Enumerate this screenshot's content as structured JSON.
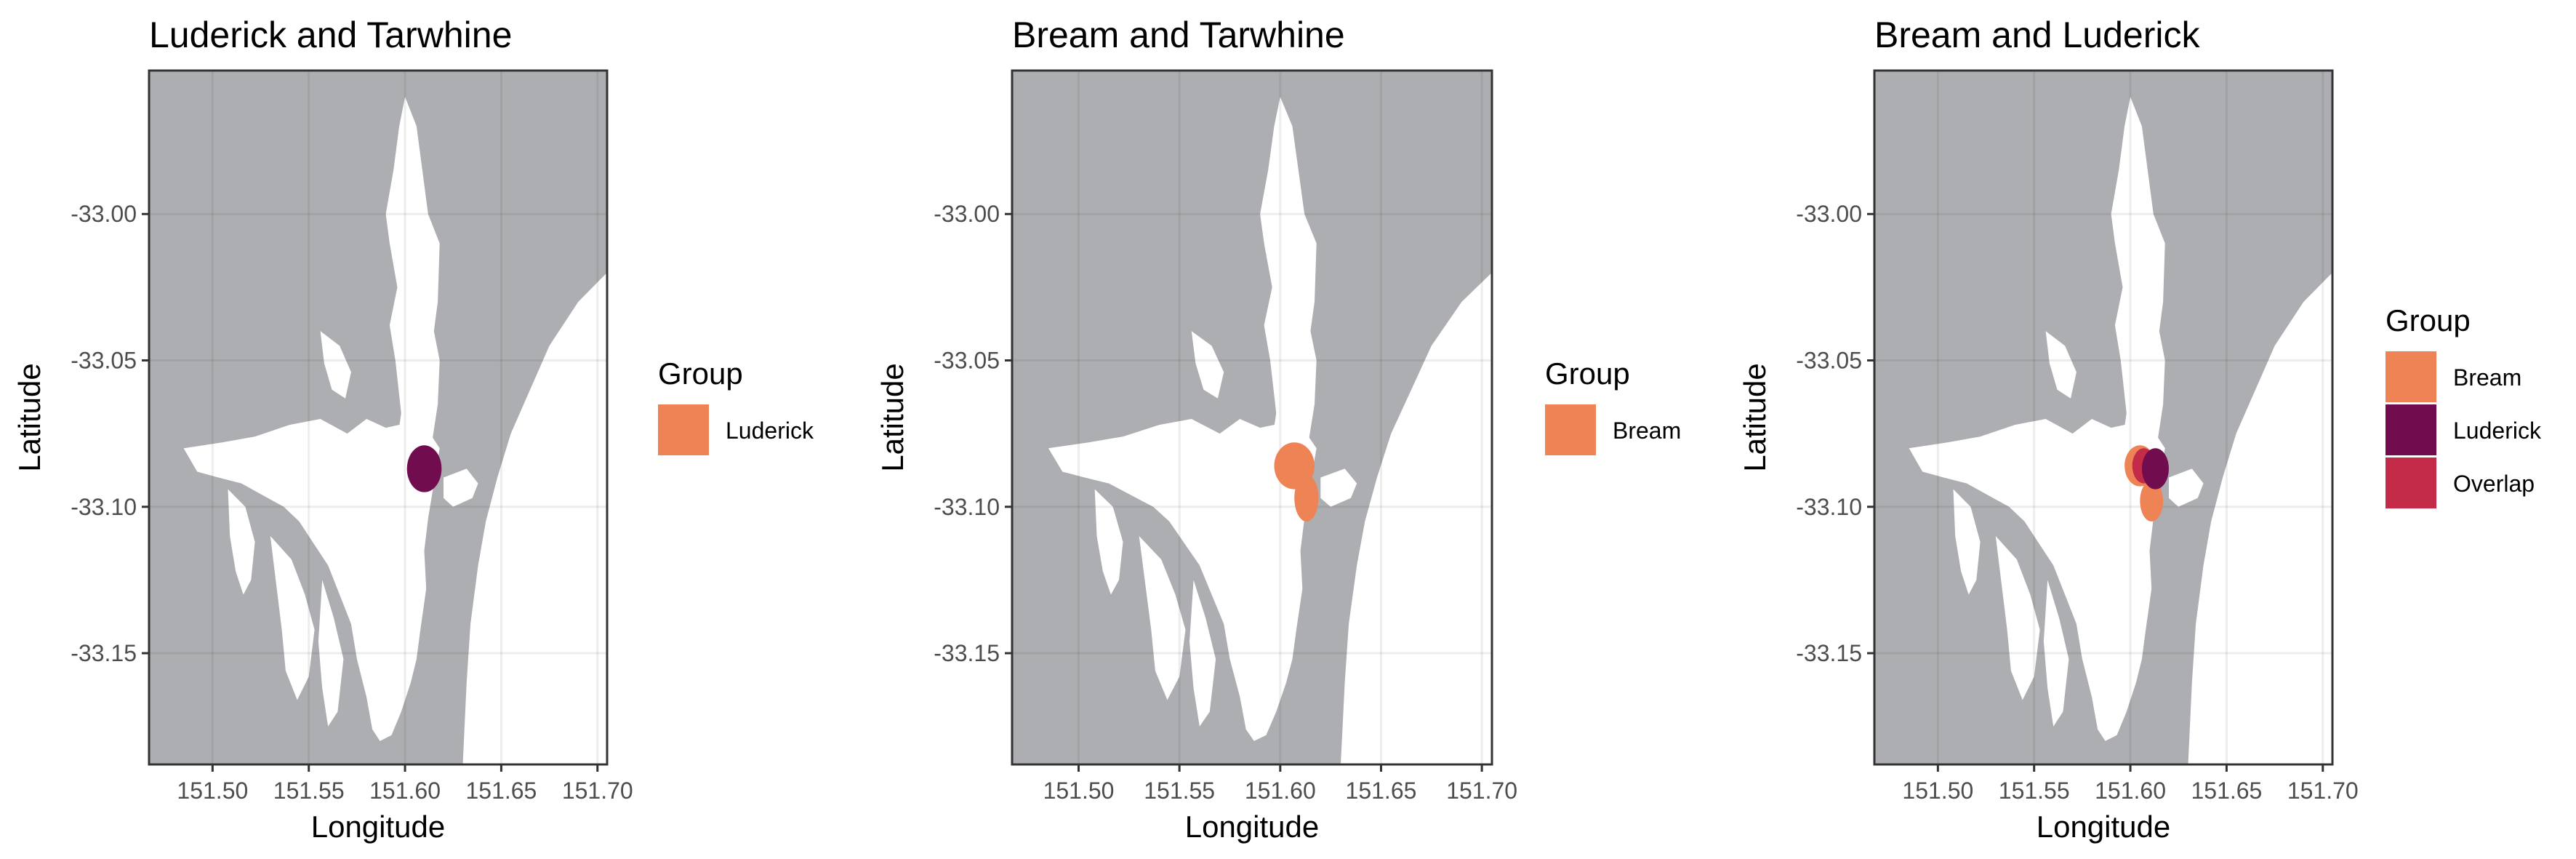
{
  "figure": {
    "colors": {
      "land": "#adaeb1",
      "water": "#ffffff",
      "grid": "#ebebeb",
      "frame": "#333333",
      "Bream": "#ee8355",
      "Luderick": "#710c4f",
      "Overlap": "#c42b48"
    },
    "panels": [
      {
        "title": "Luderick and Tarwhine",
        "xlabel": "Longitude",
        "ylabel": "Latitude",
        "x_ticks": [
          "151.50",
          "151.55",
          "151.60",
          "151.65",
          "151.70"
        ],
        "y_ticks": [
          "-33.00",
          "-33.05",
          "-33.10",
          "-33.15"
        ],
        "legend": {
          "title": "Group",
          "entries": [
            {
              "label": "Luderick",
              "color": "#ee8355"
            }
          ]
        }
      },
      {
        "title": "Bream and Tarwhine",
        "xlabel": "Longitude",
        "ylabel": "Latitude",
        "x_ticks": [
          "151.50",
          "151.55",
          "151.60",
          "151.65",
          "151.70"
        ],
        "y_ticks": [
          "-33.00",
          "-33.05",
          "-33.10",
          "-33.15"
        ],
        "legend": {
          "title": "Group",
          "entries": [
            {
              "label": "Bream",
              "color": "#ee8355"
            }
          ]
        }
      },
      {
        "title": "Bream and Luderick",
        "xlabel": "Longitude",
        "ylabel": "Latitude",
        "x_ticks": [
          "151.50",
          "151.55",
          "151.60",
          "151.65",
          "151.70"
        ],
        "y_ticks": [
          "-33.00",
          "-33.05",
          "-33.10",
          "-33.15"
        ],
        "legend": {
          "title": "Group",
          "entries": [
            {
              "label": "Bream",
              "color": "#ee8355"
            },
            {
              "label": "Luderick",
              "color": "#710c4f"
            },
            {
              "label": "Overlap",
              "color": "#c42b48"
            }
          ]
        }
      }
    ]
  },
  "chart_data": [
    {
      "type": "map",
      "title": "Luderick and Tarwhine",
      "xlabel": "Longitude",
      "ylabel": "Latitude",
      "xlim": [
        151.467,
        151.705
      ],
      "ylim": [
        -33.188,
        -32.951
      ],
      "regions": [
        {
          "group": "Luderick",
          "center": [
            151.61,
            -33.087
          ],
          "radius_lon": 0.009,
          "radius_lat": 0.008
        }
      ]
    },
    {
      "type": "map",
      "title": "Bream and Tarwhine",
      "xlabel": "Longitude",
      "ylabel": "Latitude",
      "xlim": [
        151.467,
        151.705
      ],
      "ylim": [
        -33.188,
        -32.951
      ],
      "regions": [
        {
          "group": "Bream",
          "center": [
            151.607,
            -33.086
          ],
          "radius_lon": 0.01,
          "radius_lat": 0.008
        },
        {
          "group": "Bream",
          "center": [
            151.613,
            -33.097
          ],
          "radius_lon": 0.006,
          "radius_lat": 0.008
        }
      ]
    },
    {
      "type": "map",
      "title": "Bream and Luderick",
      "xlabel": "Longitude",
      "ylabel": "Latitude",
      "xlim": [
        151.467,
        151.705
      ],
      "ylim": [
        -33.188,
        -32.951
      ],
      "regions": [
        {
          "group": "Bream",
          "center": [
            151.605,
            -33.086
          ],
          "radius_lon": 0.008,
          "radius_lat": 0.007
        },
        {
          "group": "Bream",
          "center": [
            151.611,
            -33.098
          ],
          "radius_lon": 0.006,
          "radius_lat": 0.007
        },
        {
          "group": "Overlap",
          "center": [
            151.607,
            -33.086
          ],
          "radius_lon": 0.006,
          "radius_lat": 0.006
        },
        {
          "group": "Luderick",
          "center": [
            151.613,
            -33.087
          ],
          "radius_lon": 0.007,
          "radius_lat": 0.007
        }
      ]
    }
  ]
}
